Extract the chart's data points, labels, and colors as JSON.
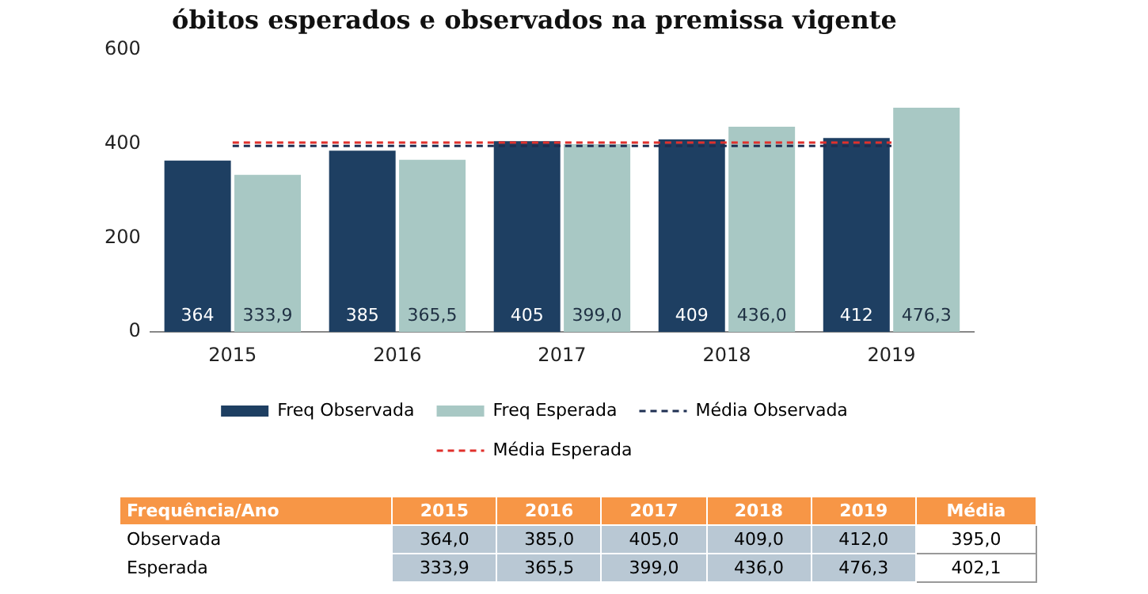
{
  "chart_data": {
    "type": "bar",
    "title": "óbitos esperados e observados na premissa vigente",
    "categories": [
      "2015",
      "2016",
      "2017",
      "2018",
      "2019"
    ],
    "series": [
      {
        "name": "Freq Observada",
        "color": "#1e3f62",
        "values": [
          364,
          385,
          405,
          409,
          412
        ],
        "value_labels": [
          "364",
          "385",
          "405",
          "409",
          "412"
        ]
      },
      {
        "name": "Freq Esperada",
        "color": "#a8c8c4",
        "values": [
          333.9,
          365.5,
          399.0,
          436.0,
          476.3
        ],
        "value_labels": [
          "333,9",
          "365,5",
          "399,0",
          "436,0",
          "476,3"
        ]
      },
      {
        "type": "line",
        "name": "Média Observada",
        "color": "#1e2f52",
        "values": [
          395.0,
          395.0,
          395.0,
          395.0,
          395.0
        ],
        "line_style": "dashed",
        "marker": "none"
      },
      {
        "type": "line",
        "name": "Média Esperada",
        "color": "#e0302c",
        "values": [
          402.1,
          402.1,
          402.1,
          402.1,
          402.1
        ],
        "line_style": "dashed",
        "marker": "none"
      }
    ],
    "ylim": [
      0,
      600
    ],
    "yticks": [
      0,
      200,
      400,
      600
    ],
    "grid": false,
    "legend": "bottom",
    "annotations": [
      "Frequência/Ano",
      "Média",
      "Observada",
      "364,0",
      "385,0",
      "405,0",
      "409,0",
      "412,0",
      "395,0",
      "Esperada",
      "333,9",
      "365,5",
      "399,0",
      "436,0",
      "476,3",
      "402,1"
    ]
  }
}
